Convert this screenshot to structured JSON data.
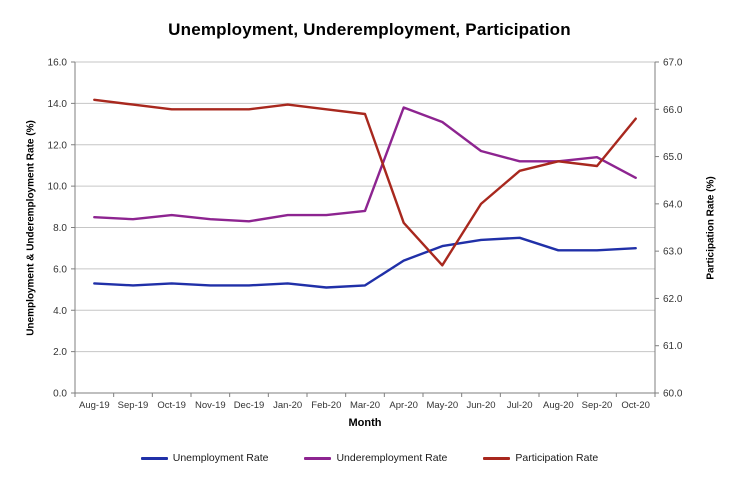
{
  "chart_data": {
    "type": "line",
    "title": "Unemployment, Underemployment, Participation",
    "xlabel": "Month",
    "ylabel_left": "Unemployment & Underemployment Rate (%)",
    "ylabel_right": "Participation Rate (%)",
    "categories": [
      "Aug-19",
      "Sep-19",
      "Oct-19",
      "Nov-19",
      "Dec-19",
      "Jan-20",
      "Feb-20",
      "Mar-20",
      "Apr-20",
      "May-20",
      "Jun-20",
      "Jul-20",
      "Aug-20",
      "Sep-20",
      "Oct-20"
    ],
    "left_axis": {
      "min": 0.0,
      "max": 16.0,
      "step": 2.0,
      "tick_labels": [
        "16.0",
        "14.0",
        "12.0",
        "10.0",
        "8.0",
        "6.0",
        "4.0",
        "2.0",
        "0.0"
      ]
    },
    "right_axis": {
      "min": 60.0,
      "max": 67.0,
      "step": 1.0,
      "tick_labels": [
        "67.0",
        "66.0",
        "65.0",
        "64.0",
        "63.0",
        "62.0",
        "61.0",
        "60.0"
      ]
    },
    "series": [
      {
        "name": "Unemployment Rate",
        "axis": "left",
        "color": "#2030A8",
        "values": [
          5.3,
          5.2,
          5.3,
          5.2,
          5.2,
          5.3,
          5.1,
          5.2,
          6.4,
          7.1,
          7.4,
          7.5,
          6.9,
          6.9,
          7.0
        ]
      },
      {
        "name": "Underemployment Rate",
        "axis": "left",
        "color": "#8D2490",
        "values": [
          8.5,
          8.4,
          8.6,
          8.4,
          8.3,
          8.6,
          8.6,
          8.8,
          13.8,
          13.1,
          11.7,
          11.2,
          11.2,
          11.4,
          10.4
        ]
      },
      {
        "name": "Participation Rate",
        "axis": "right",
        "color": "#A8281E",
        "values": [
          66.2,
          66.1,
          66.0,
          66.0,
          66.0,
          66.1,
          66.0,
          65.9,
          63.6,
          62.7,
          64.0,
          64.7,
          64.9,
          64.8,
          65.8
        ]
      }
    ],
    "grid": true,
    "legend_position": "bottom",
    "styles": {
      "gridline_color": "#c6c6c6",
      "axis_color": "#7f7f7f",
      "tick_label_color": "#333333",
      "plot_background": "#ffffff"
    }
  }
}
